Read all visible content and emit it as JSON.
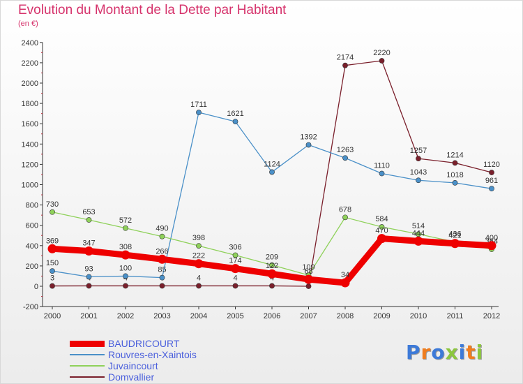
{
  "header": {
    "title": "Evolution du Montant de la Dette par Habitant",
    "subtitle": "(en €)"
  },
  "logo": {
    "text": "Proxiti",
    "colors": [
      "#3d7ad8",
      "#f07d1e",
      "#3d7ad8",
      "#8cc63f",
      "#3d7ad8",
      "#f07d1e",
      "#8cc63f"
    ]
  },
  "chart_data": {
    "type": "line",
    "title": "Evolution du Montant de la Dette par Habitant",
    "subtitle": "(en €)",
    "x": [
      "2000",
      "2001",
      "2002",
      "2003",
      "2004",
      "2005",
      "2006",
      "2007",
      "2008",
      "2009",
      "2010",
      "2011",
      "2012"
    ],
    "ylim": [
      -200,
      2400
    ],
    "yticks": [
      -200,
      0,
      200,
      400,
      600,
      800,
      1000,
      1200,
      1400,
      1600,
      1800,
      2000,
      2200,
      2400
    ],
    "grid": false,
    "legend": "bottom-left",
    "series": [
      {
        "name": "Domvallier",
        "color": "#7a1f2b",
        "values": [
          3,
          4,
          4,
          4,
          4,
          4,
          4,
          0,
          2174,
          2220,
          1257,
          1214,
          1120
        ],
        "labels": [
          "3",
          "4",
          "4",
          "4",
          "4",
          "4",
          "4",
          "0",
          "2174",
          "2220",
          "1257",
          "1214",
          "1120"
        ]
      },
      {
        "name": "Rouvres-en-Xaintois",
        "color": "#4a90c8",
        "values": [
          150,
          93,
          100,
          85,
          1711,
          1621,
          1124,
          1392,
          1263,
          1110,
          1043,
          1018,
          961
        ],
        "labels": [
          "150",
          "93",
          "100",
          "85",
          "1711",
          "1621",
          "1124",
          "1392",
          "1263",
          "1110",
          "1043",
          "1018",
          "961"
        ]
      },
      {
        "name": "Juvaincourt",
        "color": "#8fd15a",
        "values": [
          730,
          653,
          572,
          490,
          398,
          306,
          209,
          109,
          678,
          584,
          514,
          436,
          364
        ],
        "labels": [
          "730",
          "653",
          "572",
          "490",
          "398",
          "306",
          "209",
          "109",
          "678",
          "584",
          "514",
          "436",
          "364"
        ]
      },
      {
        "name": "BAUDRICOURT",
        "color": "#ee0000",
        "values": [
          369,
          347,
          308,
          266,
          222,
          174,
          122,
          68,
          34,
          470,
          444,
          421,
          400
        ],
        "labels": [
          "369",
          "347",
          "308",
          "266",
          "222",
          "174",
          "122",
          "68",
          "34",
          "470",
          "444",
          "421",
          "400"
        ]
      }
    ],
    "legend_order": [
      "BAUDRICOURT",
      "Rouvres-en-Xaintois",
      "Juvaincourt",
      "Domvallier"
    ]
  }
}
